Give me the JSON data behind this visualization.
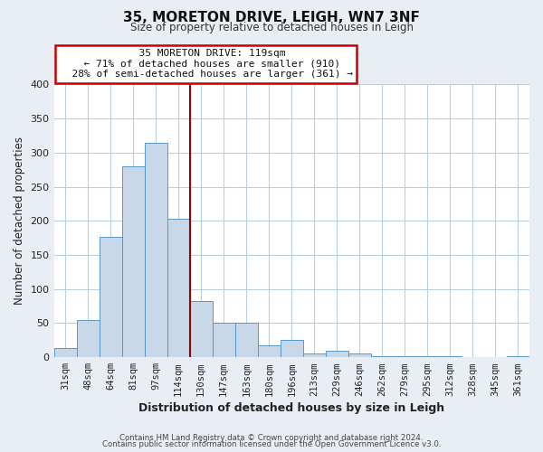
{
  "title": "35, MORETON DRIVE, LEIGH, WN7 3NF",
  "subtitle": "Size of property relative to detached houses in Leigh",
  "xlabel": "Distribution of detached houses by size in Leigh",
  "ylabel": "Number of detached properties",
  "bar_labels": [
    "31sqm",
    "48sqm",
    "64sqm",
    "81sqm",
    "97sqm",
    "114sqm",
    "130sqm",
    "147sqm",
    "163sqm",
    "180sqm",
    "196sqm",
    "213sqm",
    "229sqm",
    "246sqm",
    "262sqm",
    "279sqm",
    "295sqm",
    "312sqm",
    "328sqm",
    "345sqm",
    "361sqm"
  ],
  "bar_values": [
    13,
    54,
    177,
    280,
    315,
    203,
    82,
    51,
    50,
    17,
    25,
    5,
    10,
    5,
    2,
    2,
    1,
    1,
    0,
    0,
    1
  ],
  "bar_color": "#c8d8e8",
  "bar_edge_color": "#5599cc",
  "ylim": [
    0,
    400
  ],
  "yticks": [
    0,
    50,
    100,
    150,
    200,
    250,
    300,
    350,
    400
  ],
  "vline_x": 5.5,
  "vline_color": "#990000",
  "annotation_title": "35 MORETON DRIVE: 119sqm",
  "annotation_line1": "← 71% of detached houses are smaller (910)",
  "annotation_line2": "28% of semi-detached houses are larger (361) →",
  "annotation_box_facecolor": "#ffffff",
  "annotation_box_edgecolor": "#cc0000",
  "footer1": "Contains HM Land Registry data © Crown copyright and database right 2024.",
  "footer2": "Contains public sector information licensed under the Open Government Licence v3.0.",
  "background_color": "#e8eef4",
  "plot_bg_color": "#ffffff",
  "figsize": [
    6.0,
    5.0
  ],
  "dpi": 100
}
